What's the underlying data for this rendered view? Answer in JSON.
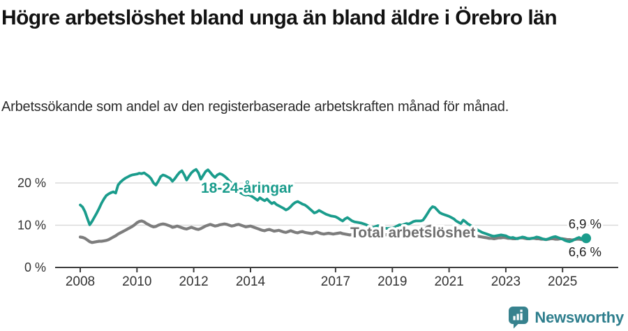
{
  "chart_data": {
    "type": "line",
    "title": "Högre arbetslöshet bland unga än bland äldre i Örebro län",
    "subtitle": "Arbetssökande som andel av den registerbaserade arbetskraften månad för månad.",
    "unit": "%",
    "frequency": "monthly",
    "x_start": {
      "year": 2008,
      "month": 1
    },
    "x_end": {
      "year": 2025,
      "month": 11
    },
    "x_ticks": [
      2008,
      2010,
      2012,
      2014,
      2017,
      2019,
      2021,
      2023,
      2025
    ],
    "y_ticks": [
      {
        "value": 0,
        "label": "0 %"
      },
      {
        "value": 10,
        "label": "10 %"
      },
      {
        "value": 20,
        "label": "20 %"
      }
    ],
    "ylim": [
      0,
      24.5
    ],
    "grid": "horizontal",
    "legend_position": "inline-labels",
    "axis_color": "#3d3d3d",
    "grid_color": "#dbdbdb",
    "series": [
      {
        "name": "18-24-åringar",
        "color": "#1a9c8c",
        "end_value_label": "6,9 %",
        "end_dot": true,
        "values": [
          14.8,
          14.3,
          13.2,
          11.6,
          10.1,
          10.9,
          11.9,
          12.9,
          14.0,
          15.2,
          16.2,
          17.0,
          17.4,
          17.7,
          17.9,
          17.6,
          19.5,
          20.2,
          20.7,
          21.1,
          21.4,
          21.7,
          21.9,
          22.0,
          22.1,
          22.3,
          22.2,
          22.4,
          22.0,
          21.6,
          21.0,
          20.0,
          19.5,
          20.4,
          21.5,
          21.9,
          21.7,
          21.4,
          21.1,
          20.4,
          21.0,
          21.8,
          22.5,
          22.9,
          21.9,
          20.7,
          21.6,
          22.4,
          22.9,
          23.2,
          22.4,
          20.9,
          21.8,
          22.7,
          23.1,
          22.5,
          21.8,
          21.3,
          21.9,
          22.2,
          22.0,
          21.6,
          21.1,
          20.5,
          19.9,
          19.3,
          18.7,
          18.1,
          17.6,
          17.3,
          17.1,
          17.2,
          17.0,
          16.7,
          16.3,
          15.9,
          16.5,
          16.1,
          15.8,
          16.2,
          15.6,
          15.1,
          15.4,
          14.9,
          14.6,
          14.3,
          14.0,
          13.6,
          13.9,
          14.4,
          15.0,
          15.4,
          15.6,
          15.3,
          15.0,
          14.8,
          14.4,
          13.9,
          13.4,
          12.9,
          13.1,
          13.5,
          13.2,
          12.9,
          12.6,
          12.4,
          12.2,
          12.1,
          12.0,
          11.7,
          11.3,
          11.0,
          11.5,
          11.8,
          11.4,
          11.0,
          10.8,
          10.7,
          10.6,
          10.5,
          10.3,
          10.1,
          9.8,
          9.6,
          9.5,
          9.7,
          9.9,
          9.6,
          9.4,
          9.3,
          9.2,
          9.3,
          9.3,
          9.5,
          9.8,
          10.1,
          10.0,
          10.2,
          10.4,
          10.3,
          10.6,
          10.9,
          11.0,
          11.0,
          11.0,
          11.2,
          12.0,
          12.9,
          13.8,
          14.4,
          14.2,
          13.6,
          13.0,
          12.7,
          12.5,
          12.3,
          12.1,
          11.8,
          11.5,
          11.0,
          10.7,
          10.4,
          11.2,
          10.8,
          10.3,
          10.0,
          9.6,
          9.3,
          8.9,
          8.6,
          8.3,
          8.1,
          7.9,
          7.7,
          7.5,
          7.4,
          7.5,
          7.6,
          7.7,
          7.6,
          7.5,
          7.2,
          7.0,
          7.1,
          6.9,
          6.8,
          7.0,
          7.2,
          7.1,
          6.9,
          6.8,
          6.9,
          7.0,
          7.2,
          7.1,
          6.9,
          6.7,
          6.6,
          6.8,
          7.0,
          7.2,
          7.3,
          7.1,
          6.9,
          6.7,
          6.4,
          6.2,
          6.1,
          6.3,
          6.6,
          6.9,
          7.1,
          6.8,
          6.5,
          6.9
        ]
      },
      {
        "name": "Total arbetslöshet",
        "color": "#7d7d7d",
        "end_value_label": "6,6 %",
        "end_dot": false,
        "values": [
          7.2,
          7.1,
          6.9,
          6.5,
          6.1,
          5.9,
          6.0,
          6.1,
          6.2,
          6.2,
          6.3,
          6.4,
          6.6,
          6.9,
          7.2,
          7.5,
          7.9,
          8.2,
          8.5,
          8.8,
          9.1,
          9.4,
          9.7,
          10.1,
          10.6,
          10.9,
          11.0,
          10.8,
          10.4,
          10.1,
          9.8,
          9.6,
          9.7,
          10.0,
          10.2,
          10.3,
          10.2,
          10.0,
          9.8,
          9.5,
          9.6,
          9.8,
          9.6,
          9.4,
          9.2,
          9.1,
          9.3,
          9.5,
          9.3,
          9.1,
          9.0,
          9.2,
          9.5,
          9.8,
          10.0,
          10.2,
          10.0,
          9.8,
          9.9,
          10.1,
          10.2,
          10.3,
          10.2,
          10.0,
          9.8,
          9.9,
          10.1,
          10.2,
          10.0,
          9.8,
          9.6,
          9.7,
          9.8,
          9.6,
          9.4,
          9.2,
          9.0,
          8.8,
          8.7,
          8.9,
          9.0,
          8.8,
          8.6,
          8.7,
          8.8,
          8.6,
          8.4,
          8.3,
          8.5,
          8.7,
          8.5,
          8.3,
          8.2,
          8.4,
          8.5,
          8.3,
          8.2,
          8.1,
          8.0,
          8.2,
          8.4,
          8.2,
          8.0,
          7.9,
          8.0,
          8.1,
          8.0,
          7.9,
          8.0,
          8.1,
          8.2,
          8.0,
          7.9,
          7.8,
          7.7,
          7.8,
          7.9,
          7.8,
          7.7,
          7.6,
          7.6,
          7.5,
          7.4,
          7.3,
          7.4,
          7.5,
          7.6,
          7.5,
          7.6,
          7.7,
          7.8,
          7.9,
          8.0,
          8.1,
          8.0,
          8.1,
          8.2,
          8.1,
          8.2,
          8.3,
          8.2,
          8.3,
          8.4,
          8.5,
          8.6,
          8.8,
          9.2,
          9.6,
          9.8,
          9.7,
          9.5,
          9.3,
          9.2,
          9.0,
          8.9,
          8.8,
          8.7,
          8.6,
          8.5,
          8.4,
          8.2,
          8.1,
          8.0,
          7.9,
          7.8,
          7.7,
          7.6,
          7.5,
          7.4,
          7.3,
          7.2,
          7.1,
          7.0,
          6.9,
          6.9,
          6.8,
          6.9,
          7.0,
          7.0,
          7.1,
          7.0,
          6.9,
          6.9,
          6.8,
          6.8,
          6.9,
          7.0,
          7.0,
          6.9,
          6.8,
          6.8,
          6.9,
          6.9,
          6.8,
          6.8,
          6.7,
          6.7,
          6.6,
          6.7,
          6.8,
          6.8,
          6.7,
          6.7,
          6.8,
          6.8,
          6.7,
          6.6,
          6.6,
          6.5,
          6.6,
          6.7,
          6.7,
          6.6,
          6.6,
          6.6
        ]
      }
    ]
  },
  "branding": {
    "name": "Newsworthy",
    "color": "#2e7e8d",
    "icon": "newsworthy-bars-bubble-icon"
  }
}
